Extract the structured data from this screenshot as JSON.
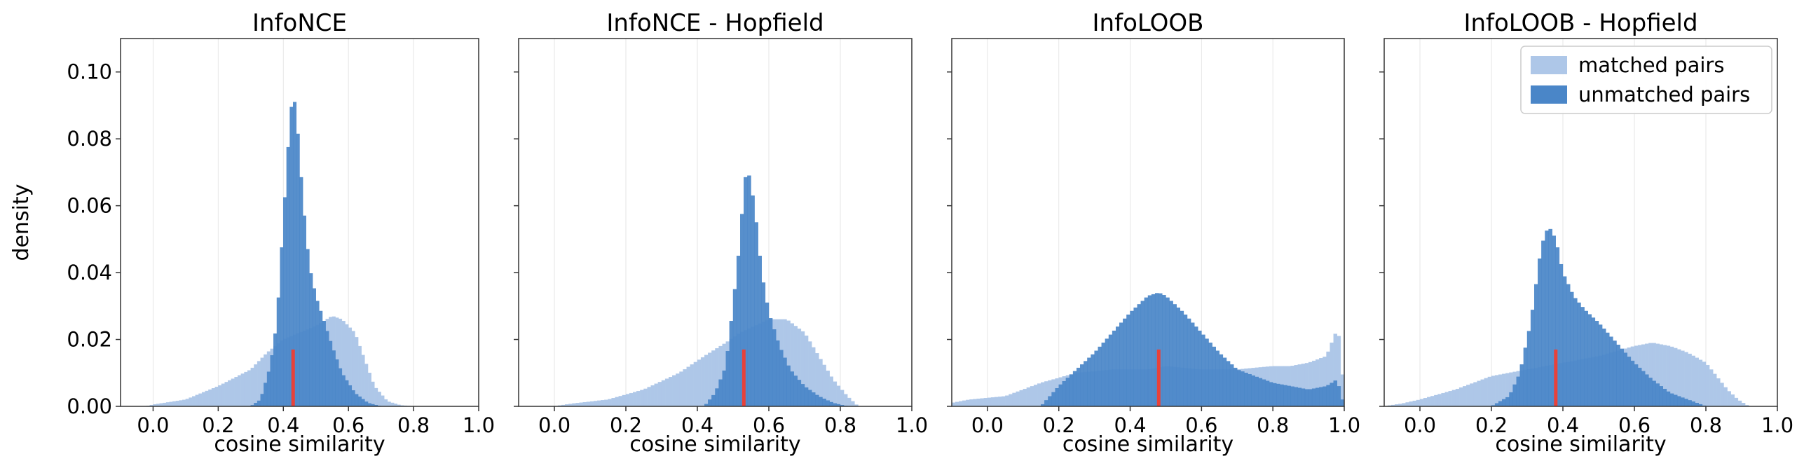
{
  "chart_data": [
    {
      "type": "histogram",
      "title": "InfoNCE",
      "xlabel": "cosine similarity",
      "ylabel": "density",
      "xlim": [
        -0.1,
        1.0
      ],
      "ylim": [
        0,
        0.11
      ],
      "xticks": [
        "0.0",
        "0.2",
        "0.4",
        "0.6",
        "0.8",
        "1.0"
      ],
      "yticks": [
        "0.00",
        "0.02",
        "0.04",
        "0.06",
        "0.08",
        "0.10"
      ],
      "grid": "vertical",
      "median_marker": 0.43,
      "series": [
        {
          "name": "matched pairs",
          "shape": [
            [
              -0.02,
              0
            ],
            [
              0.0,
              0.0005
            ],
            [
              0.1,
              0.002
            ],
            [
              0.2,
              0.006
            ],
            [
              0.3,
              0.011
            ],
            [
              0.35,
              0.016
            ],
            [
              0.4,
              0.02
            ],
            [
              0.45,
              0.022
            ],
            [
              0.5,
              0.024
            ],
            [
              0.55,
              0.027
            ],
            [
              0.58,
              0.026
            ],
            [
              0.62,
              0.022
            ],
            [
              0.65,
              0.014
            ],
            [
              0.68,
              0.006
            ],
            [
              0.72,
              0.0015
            ],
            [
              0.76,
              0.0003
            ],
            [
              0.8,
              0
            ]
          ]
        },
        {
          "name": "unmatched pairs",
          "shape": [
            [
              0.3,
              0
            ],
            [
              0.33,
              0.002
            ],
            [
              0.36,
              0.012
            ],
            [
              0.38,
              0.025
            ],
            [
              0.4,
              0.055
            ],
            [
              0.42,
              0.085
            ],
            [
              0.43,
              0.094
            ],
            [
              0.44,
              0.088
            ],
            [
              0.46,
              0.062
            ],
            [
              0.48,
              0.042
            ],
            [
              0.5,
              0.033
            ],
            [
              0.52,
              0.027
            ],
            [
              0.55,
              0.018
            ],
            [
              0.58,
              0.01
            ],
            [
              0.62,
              0.004
            ],
            [
              0.66,
              0.001
            ],
            [
              0.7,
              0
            ]
          ]
        }
      ]
    },
    {
      "type": "histogram",
      "title": "InfoNCE - Hopfield",
      "xlabel": "cosine similarity",
      "xlim": [
        -0.1,
        1.0
      ],
      "ylim": [
        0,
        0.11
      ],
      "xticks": [
        "0.0",
        "0.2",
        "0.4",
        "0.6",
        "0.8",
        "1.0"
      ],
      "grid": "vertical",
      "median_marker": 0.53,
      "series": [
        {
          "name": "matched pairs",
          "shape": [
            [
              0.0,
              0
            ],
            [
              0.05,
              0.0008
            ],
            [
              0.15,
              0.002
            ],
            [
              0.25,
              0.005
            ],
            [
              0.35,
              0.01
            ],
            [
              0.42,
              0.015
            ],
            [
              0.48,
              0.019
            ],
            [
              0.52,
              0.022
            ],
            [
              0.56,
              0.024
            ],
            [
              0.6,
              0.026
            ],
            [
              0.65,
              0.026
            ],
            [
              0.7,
              0.022
            ],
            [
              0.74,
              0.015
            ],
            [
              0.78,
              0.008
            ],
            [
              0.82,
              0.003
            ],
            [
              0.85,
              0
            ]
          ]
        },
        {
          "name": "unmatched pairs",
          "shape": [
            [
              0.42,
              0
            ],
            [
              0.45,
              0.004
            ],
            [
              0.48,
              0.012
            ],
            [
              0.5,
              0.03
            ],
            [
              0.52,
              0.05
            ],
            [
              0.53,
              0.065
            ],
            [
              0.54,
              0.072
            ],
            [
              0.56,
              0.06
            ],
            [
              0.58,
              0.04
            ],
            [
              0.6,
              0.028
            ],
            [
              0.63,
              0.018
            ],
            [
              0.66,
              0.011
            ],
            [
              0.7,
              0.006
            ],
            [
              0.74,
              0.003
            ],
            [
              0.78,
              0.001
            ],
            [
              0.82,
              0
            ]
          ]
        }
      ]
    },
    {
      "type": "histogram",
      "title": "InfoLOOB",
      "xlabel": "cosine similarity",
      "xlim": [
        -0.1,
        1.0
      ],
      "ylim": [
        0,
        0.11
      ],
      "xticks": [
        "0.0",
        "0.2",
        "0.4",
        "0.6",
        "0.8",
        "1.0"
      ],
      "grid": "vertical",
      "median_marker": 0.48,
      "series": [
        {
          "name": "matched pairs",
          "shape": [
            [
              -0.1,
              0.001
            ],
            [
              -0.05,
              0.002
            ],
            [
              0.0,
              0.0025
            ],
            [
              0.05,
              0.003
            ],
            [
              0.15,
              0.007
            ],
            [
              0.25,
              0.01
            ],
            [
              0.35,
              0.011
            ],
            [
              0.45,
              0.011
            ],
            [
              0.5,
              0.012
            ],
            [
              0.6,
              0.011
            ],
            [
              0.7,
              0.011
            ],
            [
              0.8,
              0.012
            ],
            [
              0.85,
              0.012
            ],
            [
              0.9,
              0.013
            ],
            [
              0.95,
              0.015
            ],
            [
              0.98,
              0.023
            ],
            [
              0.99,
              0.019
            ],
            [
              1.0,
              0
            ]
          ]
        },
        {
          "name": "unmatched pairs",
          "shape": [
            [
              0.15,
              0
            ],
            [
              0.2,
              0.006
            ],
            [
              0.25,
              0.011
            ],
            [
              0.3,
              0.016
            ],
            [
              0.35,
              0.022
            ],
            [
              0.4,
              0.028
            ],
            [
              0.45,
              0.033
            ],
            [
              0.48,
              0.034
            ],
            [
              0.5,
              0.033
            ],
            [
              0.55,
              0.028
            ],
            [
              0.6,
              0.022
            ],
            [
              0.65,
              0.016
            ],
            [
              0.7,
              0.011
            ],
            [
              0.75,
              0.009
            ],
            [
              0.8,
              0.007
            ],
            [
              0.85,
              0.006
            ],
            [
              0.9,
              0.005
            ],
            [
              0.95,
              0.006
            ],
            [
              0.98,
              0.008
            ],
            [
              1.0,
              0
            ]
          ]
        }
      ]
    },
    {
      "type": "histogram",
      "title": "InfoLOOB - Hopfield",
      "xlabel": "cosine similarity",
      "xlim": [
        -0.1,
        1.0
      ],
      "ylim": [
        0,
        0.11
      ],
      "xticks": [
        "0.0",
        "0.2",
        "0.4",
        "0.6",
        "0.8",
        "1.0"
      ],
      "grid": "vertical",
      "legend": "top-right",
      "median_marker": 0.38,
      "series": [
        {
          "name": "matched pairs",
          "shape": [
            [
              -0.1,
              0
            ],
            [
              -0.05,
              0.0008
            ],
            [
              0.0,
              0.002
            ],
            [
              0.1,
              0.005
            ],
            [
              0.2,
              0.009
            ],
            [
              0.3,
              0.011
            ],
            [
              0.4,
              0.013
            ],
            [
              0.5,
              0.015
            ],
            [
              0.6,
              0.018
            ],
            [
              0.65,
              0.019
            ],
            [
              0.7,
              0.018
            ],
            [
              0.75,
              0.016
            ],
            [
              0.8,
              0.013
            ],
            [
              0.83,
              0.009
            ],
            [
              0.86,
              0.005
            ],
            [
              0.89,
              0.002
            ],
            [
              0.92,
              0
            ]
          ]
        },
        {
          "name": "unmatched pairs",
          "shape": [
            [
              0.2,
              0
            ],
            [
              0.25,
              0.003
            ],
            [
              0.28,
              0.01
            ],
            [
              0.31,
              0.025
            ],
            [
              0.34,
              0.048
            ],
            [
              0.36,
              0.054
            ],
            [
              0.38,
              0.05
            ],
            [
              0.4,
              0.04
            ],
            [
              0.43,
              0.033
            ],
            [
              0.46,
              0.029
            ],
            [
              0.5,
              0.025
            ],
            [
              0.55,
              0.019
            ],
            [
              0.6,
              0.013
            ],
            [
              0.65,
              0.008
            ],
            [
              0.7,
              0.004
            ],
            [
              0.75,
              0.002
            ],
            [
              0.8,
              0
            ]
          ]
        }
      ]
    }
  ],
  "colors": {
    "matched": "#aec7e8",
    "unmatched": "#4a86c8",
    "median_line": "#e8413a",
    "grid": "#e6e6e6"
  }
}
